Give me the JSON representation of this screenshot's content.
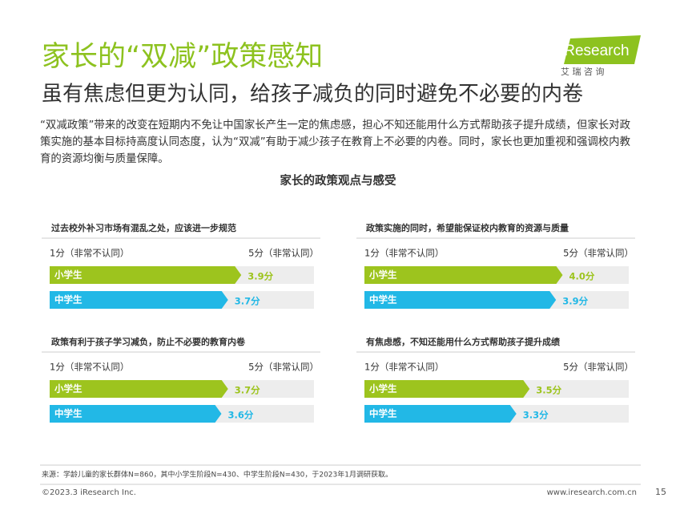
{
  "header": {
    "title": "家长的“双减”政策感知",
    "subtitle": "虽有焦虑但更为认同，给孩子减负的同时避免不必要的内卷",
    "logo": "iResearch",
    "logo_cn": "艾 瑞 咨 询"
  },
  "intro": "“双减政策”带来的改变在短期内不免让中国家长产生一定的焦虑感，担心不知还能用什么方式帮助孩子提升成绩，但家长对政策实施的基本目标持高度认同态度，认为“双减”有助于减少孩子在教育上不必要的内卷。同时，家长也更加重视和强调校内教育的资源均衡与质量保障。",
  "section_title": "家长的政策观点与感受",
  "scale": [
    {
      "value": 1,
      "label": "1分（非常不认同）"
    },
    {
      "value": 5,
      "label": "5分（非常认同）"
    }
  ],
  "groups": [
    {
      "name": "小学生",
      "color": "#9dc41e"
    },
    {
      "name": "中学生",
      "color": "#22b8e6"
    }
  ],
  "panels": [
    {
      "title": "过去校外补习市场有混乱之处，应该进一步规范",
      "values": [
        3.9,
        3.7
      ],
      "value_labels": [
        "3.9分",
        "3.7分"
      ]
    },
    {
      "title": "政策实施的同时，希望能保证校内教育的资源与质量",
      "values": [
        4.0,
        3.9
      ],
      "value_labels": [
        "4.0分",
        "3.9分"
      ]
    },
    {
      "title": "政策有利于孩子学习减负，防止不必要的教育内卷",
      "values": [
        3.7,
        3.6
      ],
      "value_labels": [
        "3.7分",
        "3.6分"
      ]
    },
    {
      "title": "有焦虑感，不知还能用什么方式帮助孩子提升成绩",
      "values": [
        3.5,
        3.3
      ],
      "value_labels": [
        "3.5分",
        "3.3分"
      ]
    }
  ],
  "footer": {
    "source": "来源：学龄儿童的家长群体N=860，其中小学生阶段N=430、中学生阶段N=430，于2023年1月调研获取。",
    "copyright": "©2023.3 iResearch Inc.",
    "website": "www.iresearch.com.cn",
    "page": "15"
  }
}
